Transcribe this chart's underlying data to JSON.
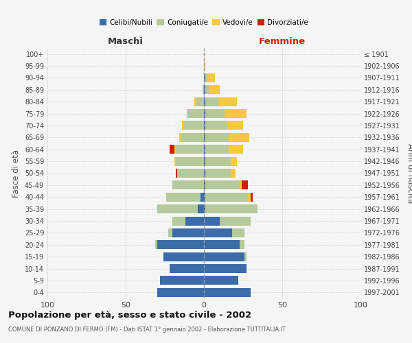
{
  "age_groups": [
    "0-4",
    "5-9",
    "10-14",
    "15-19",
    "20-24",
    "25-29",
    "30-34",
    "35-39",
    "40-44",
    "45-49",
    "50-54",
    "55-59",
    "60-64",
    "65-69",
    "70-74",
    "75-79",
    "80-84",
    "85-89",
    "90-94",
    "95-99",
    "100+"
  ],
  "birth_years": [
    "1997-2001",
    "1992-1996",
    "1987-1991",
    "1982-1986",
    "1977-1981",
    "1972-1976",
    "1967-1971",
    "1962-1966",
    "1957-1961",
    "1952-1956",
    "1947-1951",
    "1942-1946",
    "1937-1941",
    "1932-1936",
    "1927-1931",
    "1922-1926",
    "1917-1921",
    "1912-1916",
    "1907-1911",
    "1902-1906",
    "≤ 1901"
  ],
  "male": {
    "celibi": [
      30,
      28,
      22,
      26,
      30,
      20,
      12,
      4,
      2,
      0,
      0,
      0,
      0,
      0,
      0,
      0,
      0,
      0,
      0,
      0,
      0
    ],
    "coniugati": [
      0,
      0,
      0,
      0,
      1,
      3,
      8,
      26,
      22,
      20,
      17,
      18,
      18,
      15,
      13,
      10,
      5,
      1,
      0,
      0,
      0
    ],
    "vedovi": [
      0,
      0,
      0,
      0,
      0,
      0,
      0,
      0,
      0,
      0,
      0,
      1,
      1,
      1,
      1,
      1,
      1,
      0,
      0,
      0,
      0
    ],
    "divorziati": [
      0,
      0,
      0,
      0,
      0,
      0,
      0,
      0,
      0,
      0,
      1,
      0,
      3,
      0,
      0,
      0,
      0,
      0,
      0,
      0,
      0
    ]
  },
  "female": {
    "nubili": [
      30,
      22,
      27,
      26,
      23,
      18,
      10,
      1,
      1,
      1,
      1,
      1,
      1,
      1,
      1,
      1,
      1,
      1,
      1,
      0,
      0
    ],
    "coniugate": [
      0,
      0,
      0,
      1,
      3,
      8,
      20,
      33,
      27,
      22,
      16,
      16,
      15,
      15,
      14,
      12,
      8,
      2,
      1,
      0,
      0
    ],
    "vedove": [
      0,
      0,
      0,
      0,
      0,
      0,
      0,
      0,
      2,
      1,
      3,
      4,
      9,
      13,
      10,
      14,
      12,
      7,
      5,
      1,
      0
    ],
    "divorziate": [
      0,
      0,
      0,
      0,
      0,
      0,
      0,
      0,
      1,
      4,
      0,
      0,
      0,
      0,
      0,
      0,
      0,
      0,
      0,
      0,
      0
    ]
  },
  "colors": {
    "celibi": "#3a6ca8",
    "coniugati": "#b5c99a",
    "vedovi": "#f5c842",
    "divorziati": "#cc2200"
  },
  "title": "Popolazione per età, sesso e stato civile - 2002",
  "subtitle": "COMUNE DI PONZANO DI FERMO (FM) - Dati ISTAT 1° gennaio 2002 - Elaborazione TUTTITALIA.IT",
  "xlabel_maschi": "Maschi",
  "xlabel_femmine": "Femmine",
  "ylabel_left": "Fasce di età",
  "ylabel_right": "Anni di nascita",
  "xlim": 100,
  "bg_color": "#f5f5f5",
  "grid_color": "#cccccc"
}
